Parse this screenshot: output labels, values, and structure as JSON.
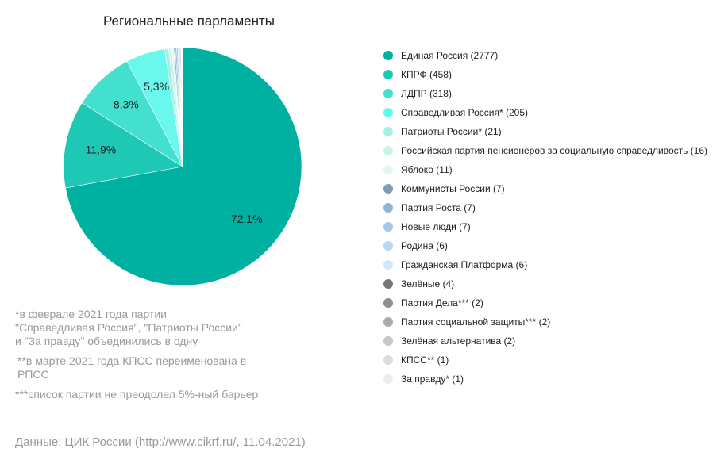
{
  "chart_data": {
    "type": "pie",
    "title": "Региональные парламенты",
    "start_angle_deg": 0,
    "slices": [
      {
        "label": "Единая Россия (2777)",
        "value": 2777,
        "percent_label": "72,1%",
        "color": "#00b0a0"
      },
      {
        "label": "КПРФ (458)",
        "value": 458,
        "percent_label": "11,9%",
        "color": "#1ec8b5"
      },
      {
        "label": "ЛДПР (318)",
        "value": 318,
        "percent_label": "8,3%",
        "color": "#44e0cf"
      },
      {
        "label": "Справедливая Россия* (205)",
        "value": 205,
        "percent_label": "5,3%",
        "color": "#6af8ec"
      },
      {
        "label": "Патриоты России* (21)",
        "value": 21,
        "percent_label": "",
        "color": "#a6efe2"
      },
      {
        "label": "Российская партия пенсионеров за социальную справедливость (16)",
        "value": 16,
        "percent_label": "",
        "color": "#ccf3ea"
      },
      {
        "label": "Яблоко (11)",
        "value": 11,
        "percent_label": "",
        "color": "#e4f8f2"
      },
      {
        "label": "Коммунисты России (7)",
        "value": 7,
        "percent_label": "",
        "color": "#7a9eb8"
      },
      {
        "label": "Партия Роста (7)",
        "value": 7,
        "percent_label": "",
        "color": "#8fb4d4"
      },
      {
        "label": "Новые люди (7)",
        "value": 7,
        "percent_label": "",
        "color": "#a4c6e8"
      },
      {
        "label": "Родина (6)",
        "value": 6,
        "percent_label": "",
        "color": "#b7d8f2"
      },
      {
        "label": "Гражданская Платформа (6)",
        "value": 6,
        "percent_label": "",
        "color": "#cfe8f7"
      },
      {
        "label": "Зелёные (4)",
        "value": 4,
        "percent_label": "",
        "color": "#777777"
      },
      {
        "label": "Партия Дела*** (2)",
        "value": 2,
        "percent_label": "",
        "color": "#8f8f8f"
      },
      {
        "label": "Партия социальной защиты*** (2)",
        "value": 2,
        "percent_label": "",
        "color": "#ababab"
      },
      {
        "label": "Зелёная альтернатива (2)",
        "value": 2,
        "percent_label": "",
        "color": "#c6c6c6"
      },
      {
        "label": "КПСС** (1)",
        "value": 1,
        "percent_label": "",
        "color": "#dcdcdc"
      },
      {
        "label": "За правду* (1)",
        "value": 1,
        "percent_label": "",
        "color": "#ececec"
      }
    ],
    "legend_position": "right"
  },
  "notes": {
    "note1": "*в феврале 2021 года партии\n\"Справедливая Россия\", \"Патриоты России\"\nи \"За правду\" объединились в одну",
    "note2": "**в марте 2021 года КПСС переименована в РПСС",
    "note3": "***список партии не преодолел 5%-ный барьер"
  },
  "source": "Данные: ЦИК России (http://www.cikrf.ru/, 11.04.2021)"
}
